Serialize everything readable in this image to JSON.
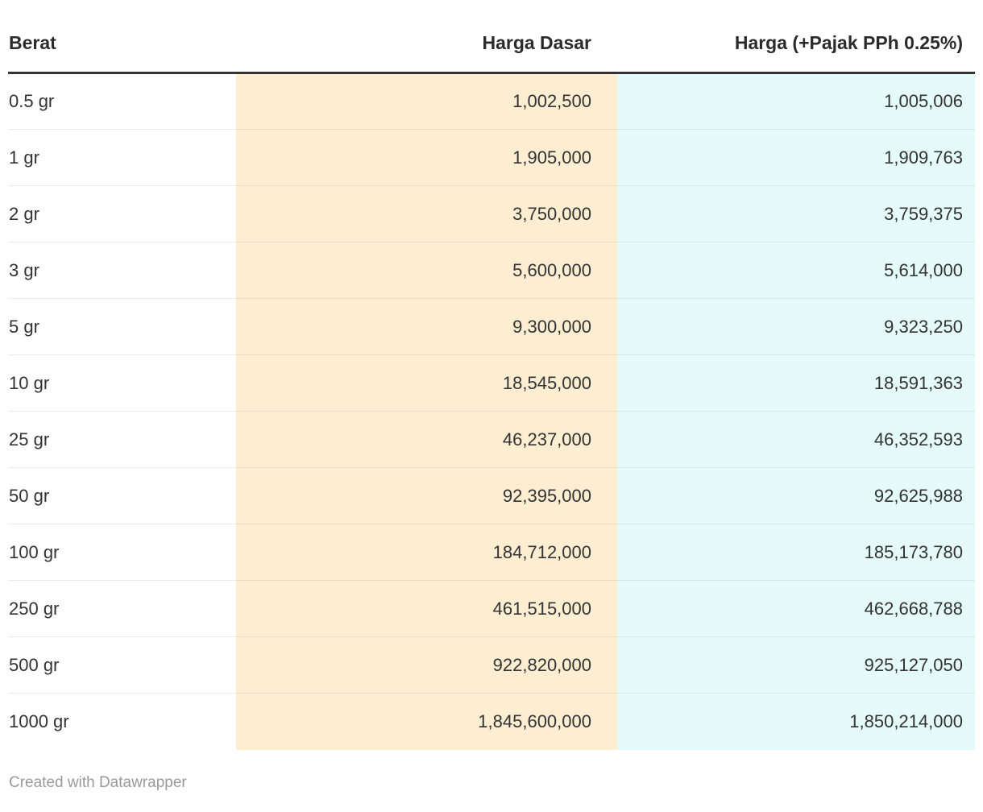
{
  "chart_data": {
    "type": "table",
    "columns": [
      "Berat",
      "Harga Dasar",
      "Harga (+Pajak PPh 0.25%)"
    ],
    "rows": [
      {
        "berat": "0.5 gr",
        "harga_dasar": 1002500,
        "harga_pajak": 1005006
      },
      {
        "berat": "1 gr",
        "harga_dasar": 1905000,
        "harga_pajak": 1909763
      },
      {
        "berat": "2 gr",
        "harga_dasar": 3750000,
        "harga_pajak": 3759375
      },
      {
        "berat": "3 gr",
        "harga_dasar": 5600000,
        "harga_pajak": 5614000
      },
      {
        "berat": "5 gr",
        "harga_dasar": 9300000,
        "harga_pajak": 9323250
      },
      {
        "berat": "10 gr",
        "harga_dasar": 18545000,
        "harga_pajak": 18591363
      },
      {
        "berat": "25 gr",
        "harga_dasar": 46237000,
        "harga_pajak": 46352593
      },
      {
        "berat": "50 gr",
        "harga_dasar": 92395000,
        "harga_pajak": 92625988
      },
      {
        "berat": "100 gr",
        "harga_dasar": 184712000,
        "harga_pajak": 185173780
      },
      {
        "berat": "250 gr",
        "harga_dasar": 461515000,
        "harga_pajak": 462668788
      },
      {
        "berat": "500 gr",
        "harga_dasar": 922820000,
        "harga_pajak": 925127050
      },
      {
        "berat": "1000 gr",
        "harga_dasar": 1845600000,
        "harga_pajak": 1850214000
      }
    ],
    "layout_hints": {
      "col2_highlight": true,
      "col3_highlight": true,
      "numeric_columns_right_aligned": true
    }
  },
  "table": {
    "display_rows": [
      [
        "0.5 gr",
        "1,002,500",
        "1,005,006"
      ],
      [
        "1 gr",
        "1,905,000",
        "1,909,763"
      ],
      [
        "2 gr",
        "3,750,000",
        "3,759,375"
      ],
      [
        "3 gr",
        "5,600,000",
        "5,614,000"
      ],
      [
        "5 gr",
        "9,300,000",
        "9,323,250"
      ],
      [
        "10 gr",
        "18,545,000",
        "18,591,363"
      ],
      [
        "25 gr",
        "46,237,000",
        "46,352,593"
      ],
      [
        "50 gr",
        "92,395,000",
        "92,625,988"
      ],
      [
        "100 gr",
        "184,712,000",
        "185,173,780"
      ],
      [
        "250 gr",
        "461,515,000",
        "462,668,788"
      ],
      [
        "500 gr",
        "922,820,000",
        "925,127,050"
      ],
      [
        "1000 gr",
        "1,845,600,000",
        "1,850,214,000"
      ]
    ]
  },
  "footer": {
    "attribution": "Created with Datawrapper"
  },
  "colors": {
    "harga_dasar_bg": "#fdeed2",
    "harga_pajak_bg": "#e5fbf9",
    "header_border": "#333333",
    "body_text": "#333333",
    "attribution_text": "#9a9a9a"
  }
}
